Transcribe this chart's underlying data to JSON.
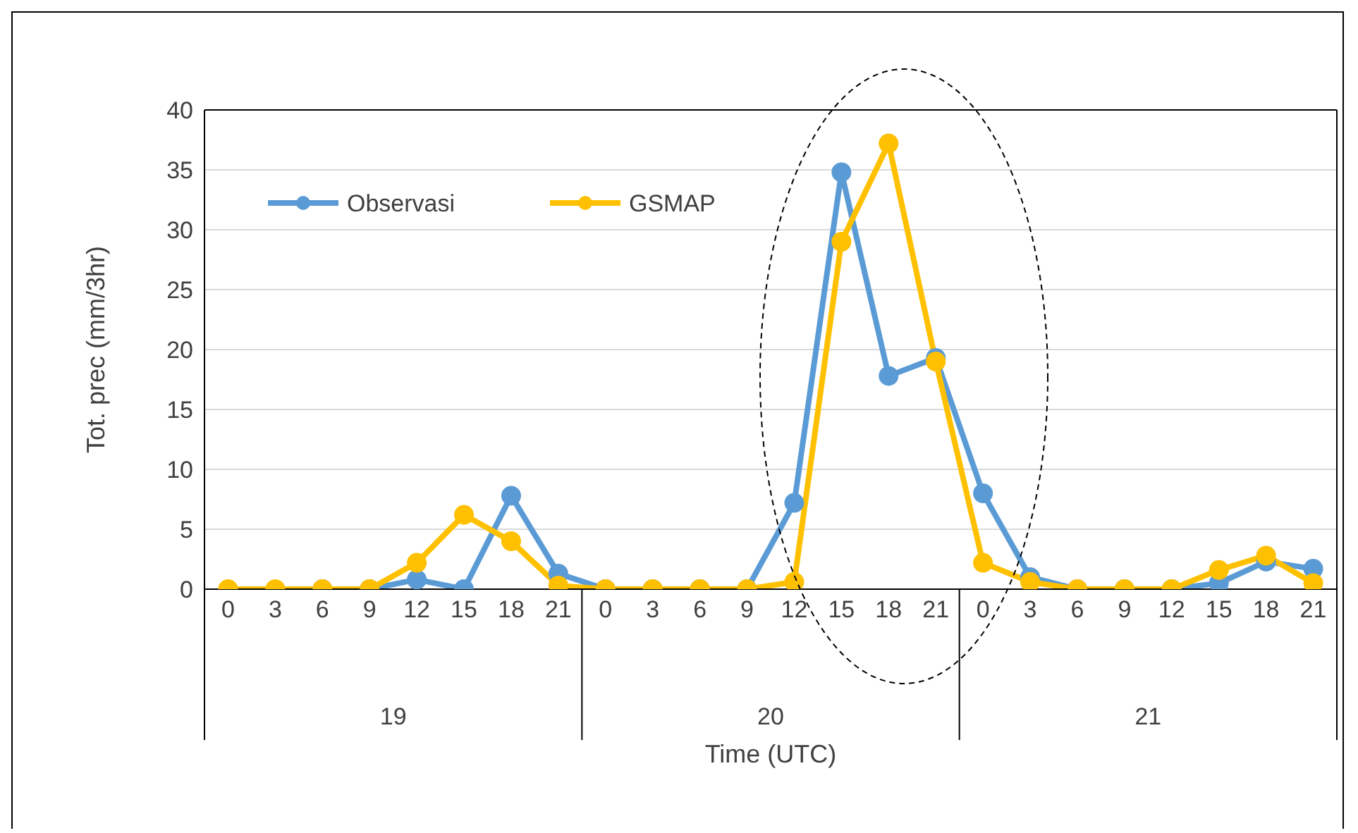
{
  "chart_data": {
    "type": "line",
    "xlabel": "Time (UTC)",
    "ylabel": "Tot. prec (mm/3hr)",
    "categories": [
      "0",
      "3",
      "6",
      "9",
      "12",
      "15",
      "18",
      "21",
      "0",
      "3",
      "6",
      "9",
      "12",
      "15",
      "18",
      "21",
      "0",
      "3",
      "6",
      "9",
      "12",
      "15",
      "18",
      "21"
    ],
    "annotations": [
      "19",
      "20",
      "21"
    ],
    "series": [
      {
        "name": "Observasi",
        "color": "#5b9bd5",
        "values": [
          null,
          null,
          0,
          0,
          0.8,
          0,
          7.8,
          1.3,
          0,
          0,
          0,
          0,
          7.2,
          34.8,
          17.8,
          19.3,
          8,
          1,
          0,
          0,
          0,
          0.5,
          2.3,
          1.7
        ]
      },
      {
        "name": "GSMAP",
        "color": "#ffc000",
        "values": [
          0,
          0,
          0,
          0,
          2.2,
          6.2,
          4,
          0.3,
          0,
          0,
          0,
          0,
          0.6,
          29,
          37.2,
          19,
          2.2,
          0.6,
          0,
          0,
          0,
          1.6,
          2.8,
          0.5
        ]
      }
    ],
    "ylim": [
      0,
      40
    ],
    "yticks": [
      0,
      5,
      10,
      15,
      20,
      25,
      30,
      35,
      40
    ],
    "grid": "y",
    "legend": "top left",
    "marker": "circle",
    "line_style": "solid"
  }
}
